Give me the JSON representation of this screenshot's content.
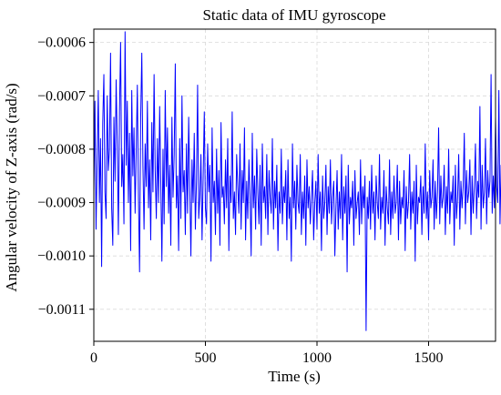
{
  "chart_data": {
    "type": "line",
    "title": "Static data of IMU gyroscope",
    "xlabel": "Time (s)",
    "ylabel": "Angular velocity of Z-axis (rad/s)",
    "xlim": [
      0,
      1800
    ],
    "ylim": [
      -0.00116,
      -0.000575
    ],
    "x_ticks": [
      0,
      500,
      1000,
      1500
    ],
    "x_tick_labels": [
      "0",
      "500",
      "1000",
      "1500"
    ],
    "y_ticks": [
      -0.0006,
      -0.0007,
      -0.0008,
      -0.0009,
      -0.001,
      -0.0011
    ],
    "y_tick_labels": [
      "−0.0006",
      "−0.0007",
      "−0.0008",
      "−0.0009",
      "−0.0010",
      "−0.0011"
    ],
    "grid": true,
    "line_color": "#0000ff",
    "series": [
      {
        "name": "",
        "x_step": 5,
        "x_start": 0,
        "values": [
          -0.00088,
          -0.00071,
          -0.00095,
          -0.00082,
          -0.00069,
          -0.0009,
          -0.00078,
          -0.00102,
          -0.00075,
          -0.00066,
          -0.00088,
          -0.00093,
          -0.0007,
          -0.00084,
          -0.0008,
          -0.00062,
          -0.00091,
          -0.00098,
          -0.00074,
          -0.00086,
          -0.00067,
          -0.00079,
          -0.00096,
          -0.00073,
          -0.0006,
          -0.00087,
          -0.00081,
          -0.00094,
          -0.00058,
          -0.00083,
          -0.00071,
          -0.0009,
          -0.00077,
          -0.00099,
          -0.00069,
          -0.00085,
          -0.00076,
          -0.00092,
          -0.0008,
          -0.00068,
          -0.00089,
          -0.00103,
          -0.00074,
          -0.00062,
          -0.00083,
          -0.00095,
          -0.00079,
          -0.00087,
          -0.00071,
          -0.00091,
          -0.00082,
          -0.00097,
          -0.00075,
          -0.00088,
          -0.00066,
          -0.00084,
          -0.00093,
          -0.00078,
          -0.0009,
          -0.00072,
          -0.00086,
          -0.00101,
          -0.0008,
          -0.00094,
          -0.00069,
          -0.00087,
          -0.00076,
          -0.00092,
          -0.00083,
          -0.00098,
          -0.00074,
          -0.00089,
          -0.00081,
          -0.00064,
          -0.00091,
          -0.00085,
          -0.00099,
          -0.00078,
          -0.00093,
          -0.0007,
          -0.00088,
          -0.00084,
          -0.00096,
          -0.00079,
          -0.00092,
          -0.00074,
          -0.00087,
          -0.001,
          -0.00082,
          -0.0009,
          -0.00077,
          -0.00095,
          -0.00086,
          -0.00068,
          -0.00093,
          -0.00089,
          -0.00081,
          -0.00097,
          -0.00085,
          -0.00073,
          -0.00091,
          -0.00094,
          -0.00079,
          -0.00088,
          -0.00083,
          -0.00101,
          -0.00076,
          -0.0009,
          -0.00086,
          -0.00096,
          -0.0008,
          -0.00092,
          -0.00084,
          -0.00098,
          -0.00075,
          -0.00089,
          -0.00087,
          -0.00094,
          -0.00082,
          -0.00091,
          -0.00078,
          -0.00099,
          -0.00085,
          -0.0009,
          -0.00073,
          -0.00093,
          -0.00088,
          -0.00096,
          -0.00081,
          -0.00087,
          -0.00092,
          -0.00079,
          -0.00095,
          -0.00084,
          -0.0009,
          -0.00076,
          -0.00097,
          -0.00086,
          -0.00093,
          -0.00082,
          -0.00089,
          -0.001,
          -0.00077,
          -0.00091,
          -0.00085,
          -0.00095,
          -0.0008,
          -0.00088,
          -0.00094,
          -0.00083,
          -0.00098,
          -0.00079,
          -0.0009,
          -0.00087,
          -0.00093,
          -0.00081,
          -0.00096,
          -0.00084,
          -0.00089,
          -0.00092,
          -0.00078,
          -0.00095,
          -0.00086,
          -0.00091,
          -0.00083,
          -0.00099,
          -0.00088,
          -0.00092,
          -0.0008,
          -0.00094,
          -0.00087,
          -0.0009,
          -0.00084,
          -0.00097,
          -0.00082,
          -0.00093,
          -0.00089,
          -0.00101,
          -0.00079,
          -0.00091,
          -0.00086,
          -0.00095,
          -0.00083,
          -0.0009,
          -0.00092,
          -0.00081,
          -0.00096,
          -0.00088,
          -0.00093,
          -0.00085,
          -0.00098,
          -0.00082,
          -0.00091,
          -0.00087,
          -0.00094,
          -0.00089,
          -0.00084,
          -0.00097,
          -0.0009,
          -0.00086,
          -0.00095,
          -0.00081,
          -0.00092,
          -0.00088,
          -0.00099,
          -0.00085,
          -0.00093,
          -0.0009,
          -0.00083,
          -0.00096,
          -0.00087,
          -0.00092,
          -0.00082,
          -0.00094,
          -0.00089,
          -0.00086,
          -0.001,
          -0.00091,
          -0.00084,
          -0.00095,
          -0.00088,
          -0.00093,
          -0.00081,
          -0.00097,
          -0.00087,
          -0.00092,
          -0.00085,
          -0.00103,
          -0.00083,
          -0.00094,
          -0.00089,
          -0.00091,
          -0.00086,
          -0.00098,
          -0.00084,
          -0.00093,
          -0.0009,
          -0.00088,
          -0.00096,
          -0.00082,
          -0.00094,
          -0.00087,
          -0.00091,
          -0.00085,
          -0.00114,
          -0.00089,
          -0.00093,
          -0.00086,
          -0.00095,
          -0.00083,
          -0.00092,
          -0.00088,
          -0.00097,
          -0.00085,
          -0.0009,
          -0.00093,
          -0.00081,
          -0.00095,
          -0.00089,
          -0.00092,
          -0.00084,
          -0.00098,
          -0.00087,
          -0.00091,
          -0.00094,
          -0.00082,
          -0.00096,
          -0.00088,
          -0.00093,
          -0.00085,
          -0.00092,
          -0.0009,
          -0.00083,
          -0.00097,
          -0.00086,
          -0.00094,
          -0.00089,
          -0.00091,
          -0.00084,
          -0.00099,
          -0.00087,
          -0.00093,
          -0.0009,
          -0.00081,
          -0.00095,
          -0.00088,
          -0.00092,
          -0.00086,
          -0.00101,
          -0.00083,
          -0.00094,
          -0.00089,
          -0.0009,
          -0.00085,
          -0.00096,
          -0.00087,
          -0.00092,
          -0.00079,
          -0.00093,
          -0.00088,
          -0.00097,
          -0.00084,
          -0.00091,
          -0.00089,
          -0.00082,
          -0.00095,
          -0.00086,
          -0.00093,
          -0.00088,
          -0.00076,
          -0.00094,
          -0.00085,
          -0.00091,
          -0.00089,
          -0.00083,
          -0.00096,
          -0.00087,
          -0.00092,
          -0.0008,
          -0.00094,
          -0.00088,
          -0.0009,
          -0.00085,
          -0.00098,
          -0.00083,
          -0.00093,
          -0.00089,
          -0.00081,
          -0.00095,
          -0.00086,
          -0.00091,
          -0.00087,
          -0.00077,
          -0.00094,
          -0.00084,
          -0.0009,
          -0.00088,
          -0.00082,
          -0.00096,
          -0.00085,
          -0.00092,
          -0.00087,
          -0.00079,
          -0.00093,
          -0.00086,
          -0.00089,
          -0.00072,
          -0.00095,
          -0.00083,
          -0.00091,
          -0.00088,
          -0.00078,
          -0.00094,
          -0.00084,
          -0.00089,
          -0.00086,
          -0.00066,
          -0.00092,
          -0.00085,
          -0.00091,
          -0.00074,
          -0.00087,
          -0.0009,
          -0.00069,
          -0.00094,
          -0.00083,
          -0.0009,
          -0.00064,
          -0.00088,
          -0.00092,
          -0.00073,
          -0.00085,
          -0.00096
        ]
      }
    ]
  }
}
